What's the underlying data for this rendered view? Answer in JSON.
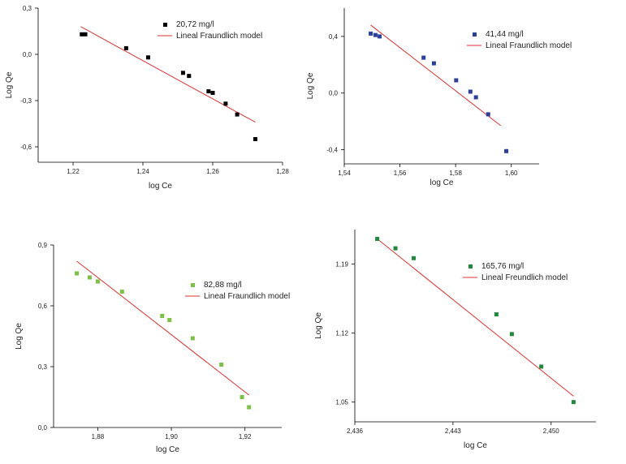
{
  "chart_data": [
    {
      "type": "scatter",
      "xlabel": "log Ce",
      "ylabel": "Log Qe",
      "xlim": [
        1.21,
        1.28
      ],
      "ylim": [
        -0.7,
        0.3
      ],
      "xticks": [
        1.22,
        1.24,
        1.26,
        1.28
      ],
      "xtick_labels": [
        "1,22",
        "1,24",
        "1,26",
        "1,28"
      ],
      "yticks": [
        0.3,
        0.0,
        -0.3,
        -0.6
      ],
      "ytick_labels": [
        "0,3",
        "0,0",
        "-0,3",
        "-0,6"
      ],
      "legend": [
        "20,72 mg/l",
        "Lineal Fraundlich model"
      ],
      "legend_position": "top-right",
      "marker_color": "#000000",
      "line_color": "#e03030",
      "series": [
        {
          "name": "20,72 mg/l",
          "x": [
            1.2225,
            1.2235,
            1.2352,
            1.2415,
            1.2515,
            1.2532,
            1.2588,
            1.26,
            1.2637,
            1.267,
            1.2722
          ],
          "y": [
            0.13,
            0.13,
            0.04,
            -0.02,
            -0.12,
            -0.14,
            -0.24,
            -0.25,
            -0.32,
            -0.39,
            -0.55
          ]
        },
        {
          "name": "Lineal Fraundlich model",
          "x": [
            1.2222,
            1.2722
          ],
          "y": [
            0.18,
            -0.44
          ]
        }
      ]
    },
    {
      "type": "scatter",
      "xlabel": "log Ce",
      "ylabel": "Log Qe",
      "xlim": [
        1.54,
        1.61
      ],
      "ylim": [
        -0.5,
        0.6
      ],
      "xticks": [
        1.54,
        1.56,
        1.58,
        1.6
      ],
      "xtick_labels": [
        "1,54",
        "1,56",
        "1,58",
        "1,60"
      ],
      "yticks": [
        0.4,
        0.0,
        -0.4
      ],
      "ytick_labels": [
        "0,4",
        "0,0",
        "-0,4"
      ],
      "legend": [
        "41,44 mg/l",
        "Lineal Fraundlich model"
      ],
      "legend_position": "top-right",
      "marker_color": "#2b3f9e",
      "line_color": "#e03030",
      "series": [
        {
          "name": "41,44 mg/l",
          "x": [
            1.5495,
            1.5512,
            1.5527,
            1.5685,
            1.5722,
            1.5802,
            1.5853,
            1.5873,
            1.5917,
            1.5982
          ],
          "y": [
            0.42,
            0.41,
            0.4,
            0.25,
            0.21,
            0.09,
            0.01,
            -0.03,
            -0.15,
            -0.41
          ]
        },
        {
          "name": "Lineal Fraundlich model",
          "x": [
            1.5495,
            1.5962
          ],
          "y": [
            0.48,
            -0.23
          ]
        }
      ]
    },
    {
      "type": "scatter",
      "xlabel": "log Ce",
      "ylabel": "Log Qe",
      "xlim": [
        1.868,
        1.93
      ],
      "ylim": [
        0.0,
        0.9
      ],
      "xticks": [
        1.88,
        1.9,
        1.92
      ],
      "xtick_labels": [
        "1,88",
        "1,90",
        "1,92"
      ],
      "yticks": [
        0.9,
        0.6,
        0.3,
        0.0
      ],
      "ytick_labels": [
        "0,9",
        "0,6",
        "0,3",
        "0,0"
      ],
      "legend": [
        "82,88 mg/l",
        "Lineal Fraundlich model"
      ],
      "legend_position": "center-right",
      "marker_color": "#7cc242",
      "line_color": "#e03030",
      "series": [
        {
          "name": "82,88 mg/l",
          "x": [
            1.8743,
            1.8778,
            1.88,
            1.8866,
            1.8975,
            1.8995,
            1.9058,
            1.9136,
            1.9192,
            1.9211
          ],
          "y": [
            0.76,
            0.74,
            0.72,
            0.67,
            0.55,
            0.53,
            0.44,
            0.31,
            0.15,
            0.1
          ]
        },
        {
          "name": "Lineal Fraundlich model",
          "x": [
            1.8743,
            1.9211
          ],
          "y": [
            0.82,
            0.16
          ]
        }
      ]
    },
    {
      "type": "scatter",
      "xlabel": "log Ce",
      "ylabel": "Log Qe",
      "xlim": [
        2.436,
        2.4532
      ],
      "ylim": [
        1.03,
        1.225
      ],
      "xticks": [
        2.436,
        2.443,
        2.45
      ],
      "xtick_labels": [
        "2,436",
        "2,443",
        "2,450"
      ],
      "yticks": [
        1.19,
        1.12,
        1.05
      ],
      "ytick_labels": [
        "1,19",
        "1,12",
        "1,05"
      ],
      "legend": [
        "165,76 mg/l",
        "Lineal Freundlich model"
      ],
      "legend_position": "top-right",
      "marker_color": "#1f8a3b",
      "line_color": "#e03030",
      "series": [
        {
          "name": "165,76 mg/l",
          "x": [
            2.4376,
            2.4389,
            2.4402,
            2.4461,
            2.4472,
            2.4493,
            2.4516
          ],
          "y": [
            1.2155,
            1.206,
            1.196,
            1.139,
            1.119,
            1.086,
            1.05
          ]
        },
        {
          "name": "Lineal Freundlich model",
          "x": [
            2.4376,
            2.4516
          ],
          "y": [
            1.2155,
            1.056
          ]
        }
      ]
    }
  ]
}
